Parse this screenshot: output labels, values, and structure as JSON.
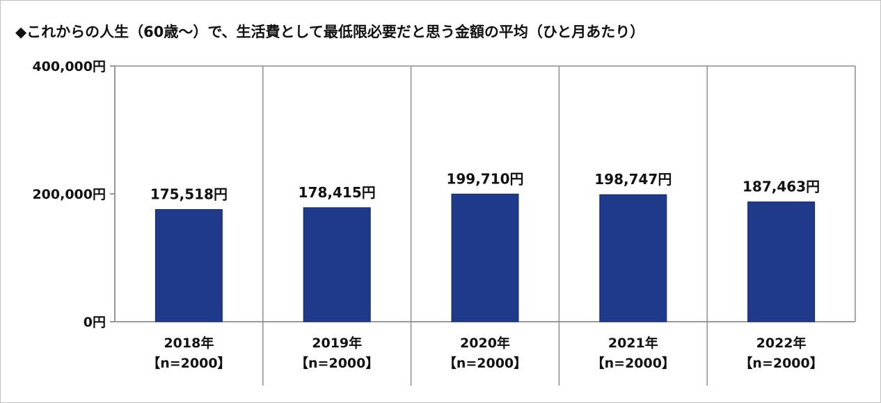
{
  "title": "◆これからの人生（60歳〜）で、生活費として最低限必要だと思う金額の平均（ひと月あたり）",
  "chart_data": {
    "type": "bar",
    "title": "◆これからの人生（60歳〜）で、生活費として最低限必要だと思う金額の平均（ひと月あたり）",
    "categories": [
      "2018年",
      "2019年",
      "2020年",
      "2021年",
      "2022年"
    ],
    "category_sublabels": [
      "【n=2000】",
      "【n=2000】",
      "【n=2000】",
      "【n=2000】",
      "【n=2000】"
    ],
    "values": [
      175518,
      178415,
      199710,
      198747,
      187463
    ],
    "value_labels": [
      "175,518円",
      "178,415円",
      "199,710円",
      "198,747円",
      "187,463円"
    ],
    "ylim": [
      0,
      400000
    ],
    "yticks": [
      {
        "value": 0,
        "label": "0円"
      },
      {
        "value": 200000,
        "label": "200,000円"
      },
      {
        "value": 400000,
        "label": "400,000円"
      }
    ],
    "bar_color": "#1f3a8a",
    "grid": true,
    "grid_color": "#8c8c8c",
    "legend": "none"
  }
}
